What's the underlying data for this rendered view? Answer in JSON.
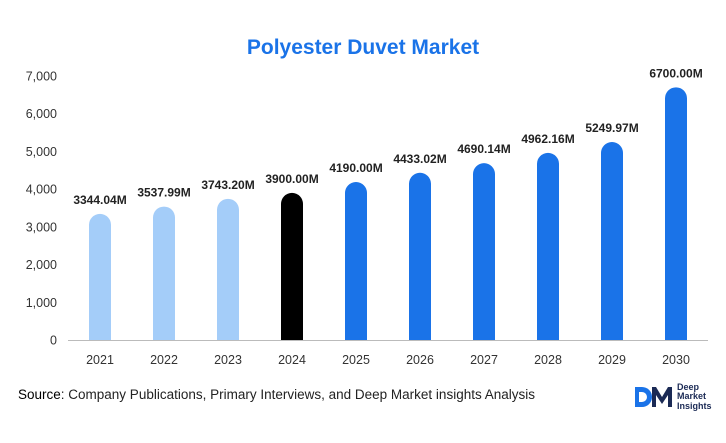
{
  "chart_data": {
    "type": "bar",
    "title": "Polyester Duvet Market",
    "categories": [
      "2021",
      "2022",
      "2023",
      "2024",
      "2025",
      "2026",
      "2027",
      "2028",
      "2029",
      "2030"
    ],
    "values": [
      3344.04,
      3537.99,
      3743.2,
      3900.0,
      4190.0,
      4433.02,
      4690.14,
      4962.16,
      5249.97,
      6700.0
    ],
    "data_labels": [
      "3344.04M",
      "3537.99M",
      "3743.20M",
      "3900.00M",
      "4190.00M",
      "4433.02M",
      "4690.14M",
      "4962.16M",
      "5249.97M",
      "6700.00M"
    ],
    "y_ticks": [
      0,
      1000,
      2000,
      3000,
      4000,
      5000,
      6000,
      7000
    ],
    "y_tick_labels": [
      "0",
      "1,000",
      "2,000",
      "3,000",
      "4,000",
      "5,000",
      "6,000",
      "7,000"
    ],
    "ylim": [
      0,
      7000
    ],
    "xlabel": "",
    "ylabel": "",
    "grid": false,
    "legend": "none",
    "bar_colors": [
      "#a4cdf9",
      "#a4cdf9",
      "#a4cdf9",
      "#000000",
      "#1a73e8",
      "#1a73e8",
      "#1a73e8",
      "#1a73e8",
      "#1a73e8",
      "#1a73e8"
    ],
    "title_color": "#1a73e8"
  },
  "footer": {
    "source_label": "Source",
    "source_text": ": Company Publications, Primary Interviews, and Deep Market insights Analysis"
  },
  "brand": {
    "mark_text": "DM",
    "line1": "Deep",
    "line2": "Market",
    "line3": "Insights"
  }
}
